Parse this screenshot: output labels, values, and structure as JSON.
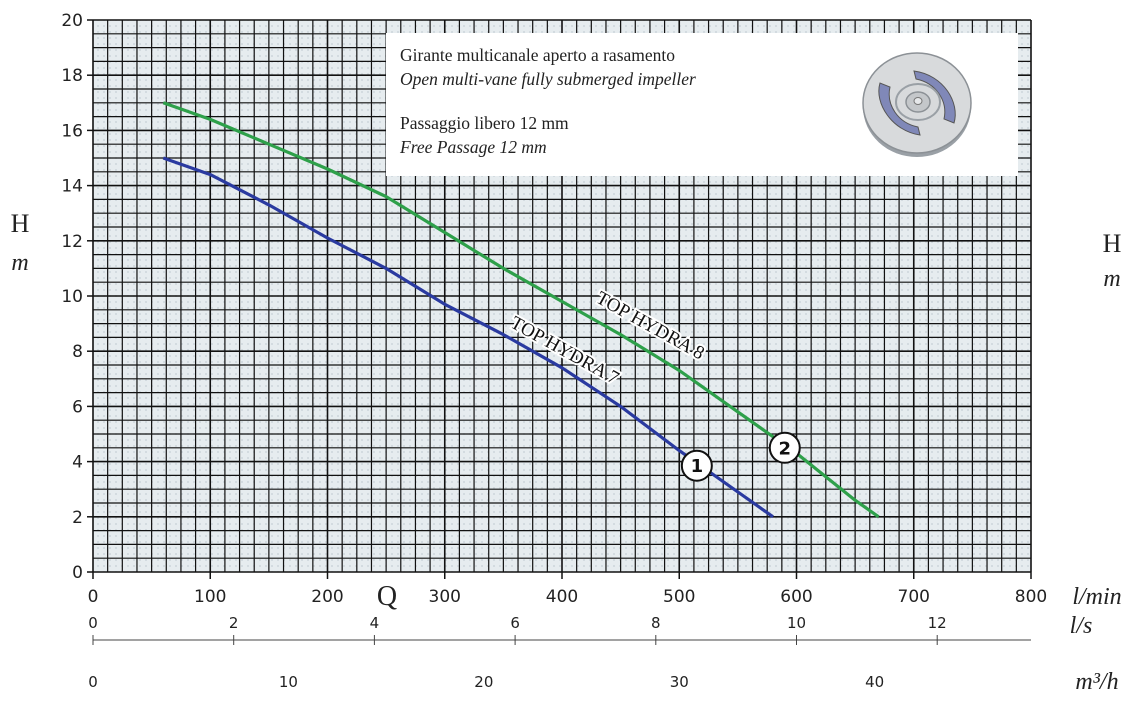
{
  "chart_data": {
    "type": "line",
    "y_axis": {
      "label": "H",
      "unit": "m",
      "ylim": [
        0,
        20
      ],
      "ticks": [
        0,
        2,
        4,
        6,
        8,
        10,
        12,
        14,
        16,
        18,
        20
      ]
    },
    "x_axis_lmin": {
      "unit": "l/min",
      "xlim": [
        0,
        800
      ],
      "ticks": [
        0,
        100,
        200,
        300,
        400,
        500,
        600,
        700,
        800
      ]
    },
    "x_axis_ls": {
      "unit": "l/s",
      "ticks": [
        0,
        2,
        4,
        6,
        8,
        10,
        12
      ]
    },
    "x_axis_m3h": {
      "unit": "m³/h",
      "ticks": [
        0,
        10,
        20,
        30,
        40
      ]
    },
    "x_label": "Q",
    "grid": true,
    "series": [
      {
        "name": "TOP HYDRA 7",
        "marker": "1",
        "color": "#2a3aa0",
        "points": [
          [
            60,
            15.0
          ],
          [
            100,
            14.4
          ],
          [
            150,
            13.3
          ],
          [
            200,
            12.1
          ],
          [
            250,
            11.0
          ],
          [
            300,
            9.7
          ],
          [
            350,
            8.6
          ],
          [
            400,
            7.4
          ],
          [
            450,
            6.0
          ],
          [
            500,
            4.4
          ],
          [
            550,
            2.9
          ],
          [
            580,
            2.0
          ]
        ]
      },
      {
        "name": "TOP HYDRA 8",
        "marker": "2",
        "color": "#2ea04a",
        "points": [
          [
            60,
            17.0
          ],
          [
            100,
            16.4
          ],
          [
            150,
            15.5
          ],
          [
            200,
            14.6
          ],
          [
            250,
            13.6
          ],
          [
            300,
            12.3
          ],
          [
            350,
            11.0
          ],
          [
            400,
            9.8
          ],
          [
            450,
            8.6
          ],
          [
            500,
            7.3
          ],
          [
            550,
            5.8
          ],
          [
            600,
            4.3
          ],
          [
            650,
            2.6
          ],
          [
            670,
            2.0
          ]
        ]
      }
    ]
  },
  "info": {
    "line1": "Girante multicanale aperto a rasamento",
    "line2": "Open multi-vane fully submerged impeller",
    "line3": "Passaggio libero 12 mm",
    "line4": "Free Passage 12 mm"
  }
}
